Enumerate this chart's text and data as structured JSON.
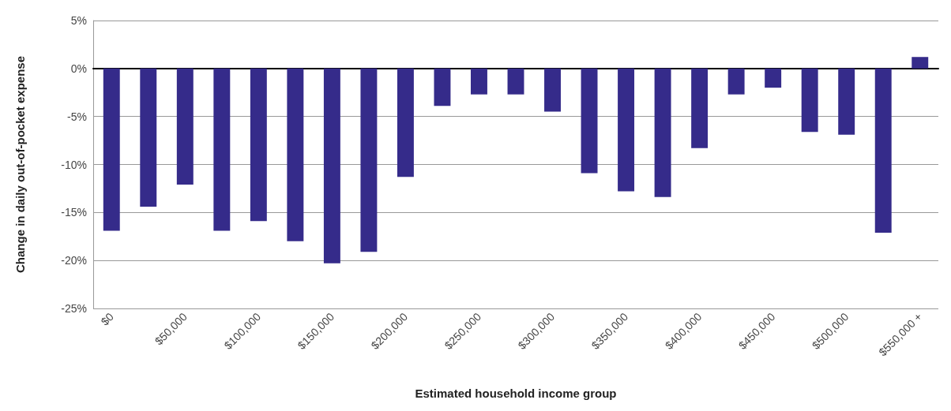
{
  "chart_data": {
    "type": "bar",
    "xlabel": "Estimated household income group",
    "ylabel": "Change in daily out-of-pocket expense",
    "categories": [
      "$0",
      null,
      "$50,000",
      null,
      "$100,000",
      null,
      "$150,000",
      null,
      "$200,000",
      null,
      "$250,000",
      null,
      "$300,000",
      null,
      "$350,000",
      null,
      "$400,000",
      null,
      "$450,000",
      null,
      "$500,000",
      null,
      "$550,000 +"
    ],
    "values": [
      -16.9,
      -14.4,
      -12.1,
      -16.9,
      -15.9,
      -18.0,
      -20.3,
      -19.1,
      -11.3,
      -3.9,
      -2.7,
      -2.7,
      -4.5,
      -10.9,
      -12.8,
      -13.4,
      -8.3,
      -2.7,
      -2.0,
      -6.6,
      -6.9,
      -17.1,
      1.2
    ],
    "color": "#352b8a",
    "ylim": [
      -25,
      5
    ],
    "yticks": [
      {
        "value": -25,
        "label": "-25%"
      },
      {
        "value": -20,
        "label": "-20%"
      },
      {
        "value": -15,
        "label": "-15%"
      },
      {
        "value": -10,
        "label": "-10%"
      },
      {
        "value": -5,
        "label": "-5%"
      },
      {
        "value": 0,
        "label": "0%"
      },
      {
        "value": 5,
        "label": "5%"
      }
    ],
    "grid": "y"
  }
}
